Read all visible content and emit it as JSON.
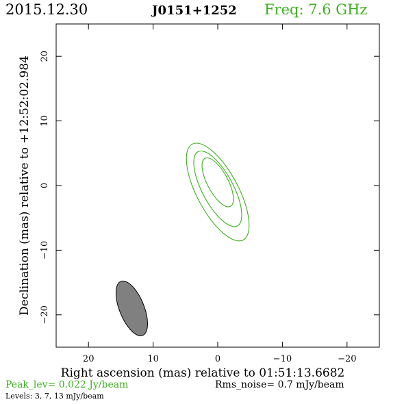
{
  "header": {
    "date": "2015.12.30",
    "source": "J0151+1252",
    "freq": "Freq: 7.6 GHz"
  },
  "footer": {
    "peak": "Peak_lev=  0.022 Jy/beam",
    "rms": "Rms_noise=  0.7 mJy/beam",
    "levels": "Levels:   3,   7,   13 mJy/beam"
  },
  "colors": {
    "contour": "#3cb01e",
    "beam_fill": "#808080",
    "text": "#000000"
  },
  "chart_data": {
    "type": "contour",
    "xlabel": "Right ascension (mas) relative to 01:51:13.6682",
    "ylabel": "Declination (mas) relative to +12:52:02.984",
    "xlim": [
      25,
      -25
    ],
    "ylim": [
      -25,
      25
    ],
    "x_ticks": [
      20,
      10,
      0,
      -10,
      -20
    ],
    "y_ticks": [
      20,
      10,
      0,
      -10,
      -20
    ],
    "x_tick_labels": [
      "20",
      "10",
      "0",
      "−10",
      "−20"
    ],
    "y_tick_labels": [
      "20",
      "10",
      "0",
      "−10",
      "−20"
    ],
    "contour_levels_mJy": [
      3,
      7,
      13
    ],
    "contours": [
      {
        "level": 3,
        "center": [
          0.0,
          -1.0
        ],
        "semi_major": 8.4,
        "semi_minor": 3.2,
        "pa_deg": -28
      },
      {
        "level": 7,
        "center": [
          0.0,
          -0.5
        ],
        "semi_major": 6.5,
        "semi_minor": 2.4,
        "pa_deg": -28
      },
      {
        "level": 13,
        "center": [
          0.0,
          0.5
        ],
        "semi_major": 4.2,
        "semi_minor": 1.6,
        "pa_deg": -28
      }
    ],
    "beam": {
      "center": [
        13.3,
        -19.0
      ],
      "semi_major": 4.5,
      "semi_minor": 1.9,
      "pa_deg": -22
    }
  }
}
